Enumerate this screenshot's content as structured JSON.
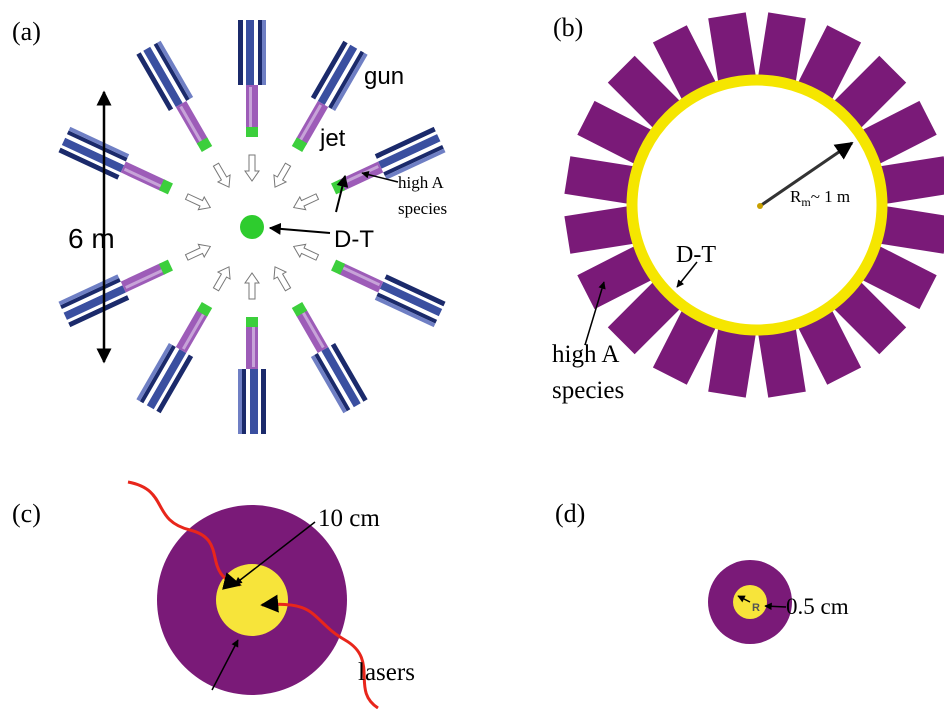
{
  "panels": [
    {
      "label": "(a)",
      "gun": "gun",
      "jet": "jet",
      "species": [
        "high A",
        "species"
      ],
      "scale": "6 m",
      "fuel": "D-T"
    },
    {
      "label": "(b)",
      "radius": {
        "symbol": "R",
        "subscript": "m",
        "text": "~ 1 m"
      },
      "fuel": "D-T",
      "species": [
        "high A",
        "species"
      ]
    },
    {
      "label": "(c)",
      "size": "10 cm",
      "lasers": "lasers"
    },
    {
      "label": "(d)",
      "radius_symbol": "R",
      "size": "0.5 cm"
    }
  ]
}
